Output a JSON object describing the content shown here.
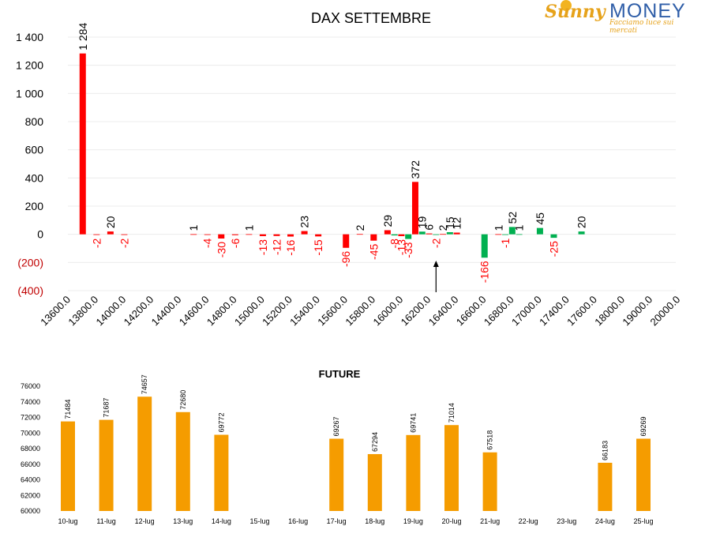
{
  "logo": {
    "sunny": "Sunny",
    "money": "MONEY",
    "tagline": "Facciamo luce sui mercati"
  },
  "colors": {
    "negative": "#ff0000",
    "positive": "#00b050",
    "future_bar": "#f59c00",
    "axis_negative_label": "#c00000"
  },
  "chart_data": [
    {
      "type": "bar",
      "title": "DAX SETTEMBRE",
      "xlabel": "",
      "ylabel": "",
      "ylim": [
        -400,
        1400
      ],
      "yticks": [
        1400,
        1200,
        1000,
        800,
        600,
        400,
        200,
        0,
        -200,
        -400
      ],
      "ytick_labels": [
        "1 400",
        "1 200",
        "1 000",
        "800",
        "600",
        "400",
        "200",
        "0",
        "(200)",
        "(400)"
      ],
      "grid": true,
      "xtick_labels": [
        "13600.0",
        "13800.0",
        "14000.0",
        "14200.0",
        "14400.0",
        "14600.0",
        "14800.0",
        "15000.0",
        "15200.0",
        "15400.0",
        "15600.0",
        "15800.0",
        "16000.0",
        "16200.0",
        "16400.0",
        "16600.0",
        "16800.0",
        "17000.0",
        "17400.0",
        "17600.0",
        "18000.0",
        "19000.0",
        "20000.0"
      ],
      "bars": [
        {
          "pos": 0.25,
          "value": 1284,
          "label": "1 284",
          "color": "red"
        },
        {
          "pos": 0.75,
          "value": -2,
          "label": "-2",
          "color": "red"
        },
        {
          "pos": 1.25,
          "value": 20,
          "label": "20",
          "color": "red"
        },
        {
          "pos": 1.75,
          "value": -2,
          "label": "-2",
          "color": "red"
        },
        {
          "pos": 4.25,
          "value": 1,
          "label": "1",
          "color": "red"
        },
        {
          "pos": 4.75,
          "value": -4,
          "label": "-4",
          "color": "red"
        },
        {
          "pos": 5.25,
          "value": -30,
          "label": "-30",
          "color": "red"
        },
        {
          "pos": 5.75,
          "value": -6,
          "label": "-6",
          "color": "red"
        },
        {
          "pos": 6.25,
          "value": 1,
          "label": "1",
          "color": "red"
        },
        {
          "pos": 6.75,
          "value": -13,
          "label": "-13",
          "color": "red"
        },
        {
          "pos": 7.25,
          "value": -12,
          "label": "-12",
          "color": "red"
        },
        {
          "pos": 7.75,
          "value": -16,
          "label": "-16",
          "color": "red"
        },
        {
          "pos": 8.25,
          "value": 23,
          "label": "23",
          "color": "red"
        },
        {
          "pos": 8.75,
          "value": -15,
          "label": "-15",
          "color": "red"
        },
        {
          "pos": 9.75,
          "value": -96,
          "label": "-96",
          "color": "red"
        },
        {
          "pos": 10.25,
          "value": 2,
          "label": "2",
          "color": "red"
        },
        {
          "pos": 10.75,
          "value": -45,
          "label": "-45",
          "color": "red"
        },
        {
          "pos": 11.25,
          "value": 29,
          "label": "29",
          "color": "red"
        },
        {
          "pos": 11.5,
          "value": -8,
          "label": "-8",
          "color": "green"
        },
        {
          "pos": 11.75,
          "value": -13,
          "label": "-13",
          "color": "red"
        },
        {
          "pos": 12.0,
          "value": -33,
          "label": "-33",
          "color": "green"
        },
        {
          "pos": 12.25,
          "value": 372,
          "label": "372",
          "color": "red"
        },
        {
          "pos": 12.5,
          "value": 19,
          "label": "19",
          "color": "green"
        },
        {
          "pos": 12.75,
          "value": 6,
          "label": "6",
          "color": "red"
        },
        {
          "pos": 13.0,
          "value": -2,
          "label": "-2",
          "color": "green"
        },
        {
          "pos": 13.25,
          "value": 2,
          "label": "2",
          "color": "red"
        },
        {
          "pos": 13.5,
          "value": 15,
          "label": "15",
          "color": "green"
        },
        {
          "pos": 13.75,
          "value": 12,
          "label": "12",
          "color": "red"
        },
        {
          "pos": 14.75,
          "value": -166,
          "label": "-166",
          "color": "green"
        },
        {
          "pos": 15.25,
          "value": 1,
          "label": "1",
          "color": "red"
        },
        {
          "pos": 15.5,
          "value": -1,
          "label": "-1",
          "color": "green"
        },
        {
          "pos": 15.75,
          "value": 52,
          "label": "52",
          "color": "green"
        },
        {
          "pos": 16.0,
          "value": 1,
          "label": "1",
          "color": "green"
        },
        {
          "pos": 16.75,
          "value": 45,
          "label": "45",
          "color": "green"
        },
        {
          "pos": 17.25,
          "value": -25,
          "label": "-25",
          "color": "green"
        },
        {
          "pos": 18.25,
          "value": 20,
          "label": "20",
          "color": "green"
        }
      ],
      "annotation": {
        "type": "arrow",
        "pos": 13.0
      }
    },
    {
      "type": "bar",
      "title": "FUTURE",
      "xlabel": "",
      "ylabel": "",
      "ylim": [
        60000,
        76000
      ],
      "yticks": [
        76000,
        74000,
        72000,
        70000,
        68000,
        66000,
        64000,
        62000,
        60000
      ],
      "ytick_labels": [
        "76000",
        "74000",
        "72000",
        "70000",
        "68000",
        "66000",
        "64000",
        "62000",
        "60000"
      ],
      "categories": [
        "10-lug",
        "11-lug",
        "12-lug",
        "13-lug",
        "14-lug",
        "15-lug",
        "16-lug",
        "17-lug",
        "18-lug",
        "19-lug",
        "20-lug",
        "21-lug",
        "22-lug",
        "23-lug",
        "24-lug",
        "25-lug"
      ],
      "values": [
        71484,
        71687,
        74657,
        72680,
        69772,
        null,
        null,
        69267,
        67294,
        69741,
        71014,
        67518,
        null,
        null,
        66183,
        69269
      ]
    }
  ]
}
